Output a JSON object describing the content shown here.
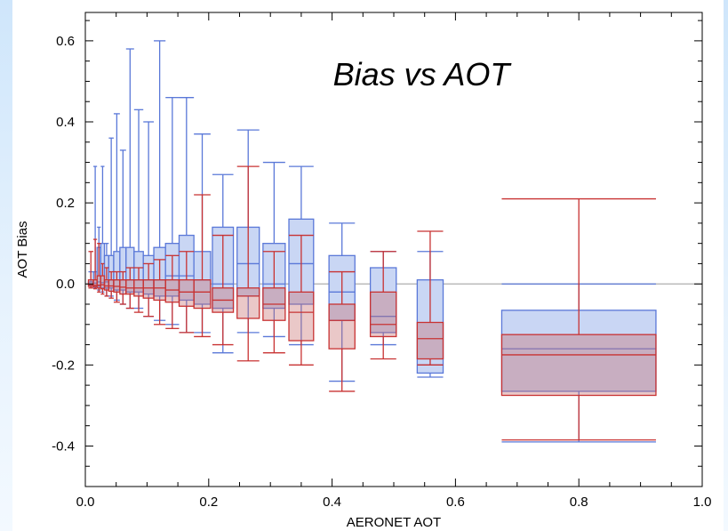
{
  "chart_data": {
    "type": "box",
    "title": "Bias vs AOT",
    "xlabel": "AERONET AOT",
    "ylabel": "AOT Bias",
    "xlim": [
      0.0,
      1.0
    ],
    "ylim": [
      -0.5,
      0.67
    ],
    "x_ticks": [
      "0.0",
      "0.2",
      "0.4",
      "0.6",
      "0.8",
      "1.0"
    ],
    "y_ticks": [
      "-0.4",
      "-0.2",
      "0.0",
      "0.2",
      "0.4",
      "0.6"
    ],
    "x_tick_values": [
      0.0,
      0.2,
      0.4,
      0.6,
      0.8,
      1.0
    ],
    "y_tick_values": [
      -0.4,
      -0.2,
      0.0,
      0.2,
      0.4,
      0.6
    ],
    "reference_line_y": 0.0,
    "colors": {
      "blue": "#5a78d8",
      "blue_fill": "#c9d6f4",
      "red": "#c83232",
      "red_fill": "rgba(200,110,110,0.38)",
      "reference": "#bbbbbb"
    },
    "series": [
      {
        "color": "blue",
        "boxes": [
          {
            "x0": 0.005,
            "x1": 0.013,
            "wlo": -0.005,
            "q1": -0.003,
            "med": 0.0,
            "q3": 0.005,
            "whi": 0.03
          },
          {
            "x0": 0.013,
            "x1": 0.019,
            "wlo": -0.01,
            "q1": -0.004,
            "med": 0.002,
            "q3": 0.03,
            "whi": 0.29
          },
          {
            "x0": 0.019,
            "x1": 0.025,
            "wlo": -0.015,
            "q1": -0.005,
            "med": 0.005,
            "q3": 0.09,
            "whi": 0.14
          },
          {
            "x0": 0.025,
            "x1": 0.031,
            "wlo": -0.02,
            "q1": -0.01,
            "med": 0.003,
            "q3": 0.1,
            "whi": 0.29
          },
          {
            "x0": 0.031,
            "x1": 0.038,
            "wlo": -0.03,
            "q1": -0.01,
            "med": 0.005,
            "q3": 0.07,
            "whi": 0.1
          },
          {
            "x0": 0.038,
            "x1": 0.046,
            "wlo": -0.03,
            "q1": -0.01,
            "med": 0.01,
            "q3": 0.07,
            "whi": 0.36
          },
          {
            "x0": 0.046,
            "x1": 0.056,
            "wlo": -0.04,
            "q1": -0.015,
            "med": 0.01,
            "q3": 0.08,
            "whi": 0.42
          },
          {
            "x0": 0.056,
            "x1": 0.066,
            "wlo": -0.05,
            "q1": -0.015,
            "med": 0.01,
            "q3": 0.09,
            "whi": 0.33
          },
          {
            "x0": 0.066,
            "x1": 0.079,
            "wlo": -0.06,
            "q1": -0.02,
            "med": 0.01,
            "q3": 0.09,
            "whi": 0.58
          },
          {
            "x0": 0.079,
            "x1": 0.094,
            "wlo": -0.06,
            "q1": -0.02,
            "med": 0.01,
            "q3": 0.08,
            "whi": 0.43
          },
          {
            "x0": 0.094,
            "x1": 0.111,
            "wlo": -0.08,
            "q1": -0.025,
            "med": 0.01,
            "q3": 0.07,
            "whi": 0.4
          },
          {
            "x0": 0.111,
            "x1": 0.13,
            "wlo": -0.09,
            "q1": -0.03,
            "med": 0.01,
            "q3": 0.09,
            "whi": 0.6
          },
          {
            "x0": 0.13,
            "x1": 0.152,
            "wlo": -0.1,
            "q1": -0.03,
            "med": 0.02,
            "q3": 0.1,
            "whi": 0.46
          },
          {
            "x0": 0.152,
            "x1": 0.176,
            "wlo": -0.12,
            "q1": -0.04,
            "med": 0.02,
            "q3": 0.12,
            "whi": 0.46
          },
          {
            "x0": 0.176,
            "x1": 0.203,
            "wlo": -0.12,
            "q1": -0.05,
            "med": 0.01,
            "q3": 0.08,
            "whi": 0.37
          },
          {
            "x0": 0.206,
            "x1": 0.24,
            "wlo": -0.17,
            "q1": -0.06,
            "med": 0.0,
            "q3": 0.14,
            "whi": 0.27
          },
          {
            "x0": 0.246,
            "x1": 0.282,
            "wlo": -0.12,
            "q1": -0.03,
            "med": 0.05,
            "q3": 0.14,
            "whi": 0.38
          },
          {
            "x0": 0.288,
            "x1": 0.324,
            "wlo": -0.13,
            "q1": -0.06,
            "med": 0.0,
            "q3": 0.1,
            "whi": 0.3
          },
          {
            "x0": 0.33,
            "x1": 0.37,
            "wlo": -0.15,
            "q1": -0.05,
            "med": 0.05,
            "q3": 0.16,
            "whi": 0.29
          },
          {
            "x0": 0.395,
            "x1": 0.437,
            "wlo": -0.24,
            "q1": -0.09,
            "med": -0.02,
            "q3": 0.07,
            "whi": 0.15
          },
          {
            "x0": 0.462,
            "x1": 0.504,
            "wlo": -0.15,
            "q1": -0.12,
            "med": -0.08,
            "q3": 0.04,
            "whi": 0.08
          },
          {
            "x0": 0.538,
            "x1": 0.58,
            "wlo": -0.23,
            "q1": -0.22,
            "med": -0.2,
            "q3": 0.01,
            "whi": 0.08
          },
          {
            "x0": 0.675,
            "x1": 0.925,
            "wlo": -0.39,
            "q1": -0.265,
            "med": -0.16,
            "q3": -0.065,
            "whi": 0.0
          }
        ]
      },
      {
        "color": "red",
        "boxes": [
          {
            "x0": 0.005,
            "x1": 0.013,
            "wlo": -0.01,
            "q1": -0.006,
            "med": -0.002,
            "q3": 0.01,
            "whi": 0.08
          },
          {
            "x0": 0.013,
            "x1": 0.019,
            "wlo": -0.012,
            "q1": -0.007,
            "med": -0.003,
            "q3": 0.01,
            "whi": 0.11
          },
          {
            "x0": 0.019,
            "x1": 0.025,
            "wlo": -0.02,
            "q1": -0.01,
            "med": -0.003,
            "q3": 0.02,
            "whi": 0.1
          },
          {
            "x0": 0.025,
            "x1": 0.031,
            "wlo": -0.025,
            "q1": -0.012,
            "med": -0.002,
            "q3": 0.02,
            "whi": 0.05
          },
          {
            "x0": 0.031,
            "x1": 0.038,
            "wlo": -0.03,
            "q1": -0.015,
            "med": -0.005,
            "q3": 0.01,
            "whi": 0.04
          },
          {
            "x0": 0.038,
            "x1": 0.046,
            "wlo": -0.035,
            "q1": -0.018,
            "med": -0.005,
            "q3": 0.01,
            "whi": 0.03
          },
          {
            "x0": 0.046,
            "x1": 0.056,
            "wlo": -0.045,
            "q1": -0.02,
            "med": -0.006,
            "q3": 0.01,
            "whi": 0.03
          },
          {
            "x0": 0.056,
            "x1": 0.066,
            "wlo": -0.05,
            "q1": -0.025,
            "med": -0.008,
            "q3": 0.01,
            "whi": 0.03
          },
          {
            "x0": 0.066,
            "x1": 0.079,
            "wlo": -0.06,
            "q1": -0.025,
            "med": -0.01,
            "q3": 0.01,
            "whi": 0.04
          },
          {
            "x0": 0.079,
            "x1": 0.094,
            "wlo": -0.07,
            "q1": -0.03,
            "med": -0.01,
            "q3": 0.01,
            "whi": 0.04
          },
          {
            "x0": 0.094,
            "x1": 0.111,
            "wlo": -0.08,
            "q1": -0.035,
            "med": -0.01,
            "q3": 0.01,
            "whi": 0.05
          },
          {
            "x0": 0.111,
            "x1": 0.13,
            "wlo": -0.1,
            "q1": -0.04,
            "med": -0.01,
            "q3": 0.01,
            "whi": 0.06
          },
          {
            "x0": 0.13,
            "x1": 0.152,
            "wlo": -0.11,
            "q1": -0.045,
            "med": -0.015,
            "q3": 0.01,
            "whi": 0.07
          },
          {
            "x0": 0.152,
            "x1": 0.176,
            "wlo": -0.12,
            "q1": -0.055,
            "med": -0.02,
            "q3": 0.01,
            "whi": 0.08
          },
          {
            "x0": 0.176,
            "x1": 0.203,
            "wlo": -0.13,
            "q1": -0.06,
            "med": -0.02,
            "q3": 0.01,
            "whi": 0.22
          },
          {
            "x0": 0.206,
            "x1": 0.24,
            "wlo": -0.15,
            "q1": -0.07,
            "med": -0.04,
            "q3": -0.01,
            "whi": 0.12
          },
          {
            "x0": 0.246,
            "x1": 0.282,
            "wlo": -0.19,
            "q1": -0.085,
            "med": -0.03,
            "q3": -0.01,
            "whi": 0.29
          },
          {
            "x0": 0.288,
            "x1": 0.324,
            "wlo": -0.17,
            "q1": -0.09,
            "med": -0.05,
            "q3": -0.01,
            "whi": 0.08
          },
          {
            "x0": 0.33,
            "x1": 0.37,
            "wlo": -0.2,
            "q1": -0.14,
            "med": -0.07,
            "q3": -0.02,
            "whi": 0.12
          },
          {
            "x0": 0.395,
            "x1": 0.437,
            "wlo": -0.265,
            "q1": -0.16,
            "med": -0.09,
            "q3": -0.05,
            "whi": 0.03
          },
          {
            "x0": 0.462,
            "x1": 0.504,
            "wlo": -0.185,
            "q1": -0.13,
            "med": -0.1,
            "q3": -0.02,
            "whi": 0.08
          },
          {
            "x0": 0.538,
            "x1": 0.58,
            "wlo": -0.2,
            "q1": -0.185,
            "med": -0.135,
            "q3": -0.095,
            "whi": 0.13
          },
          {
            "x0": 0.675,
            "x1": 0.925,
            "wlo": -0.385,
            "q1": -0.275,
            "med": -0.175,
            "q3": -0.125,
            "whi": 0.21
          }
        ]
      }
    ]
  }
}
